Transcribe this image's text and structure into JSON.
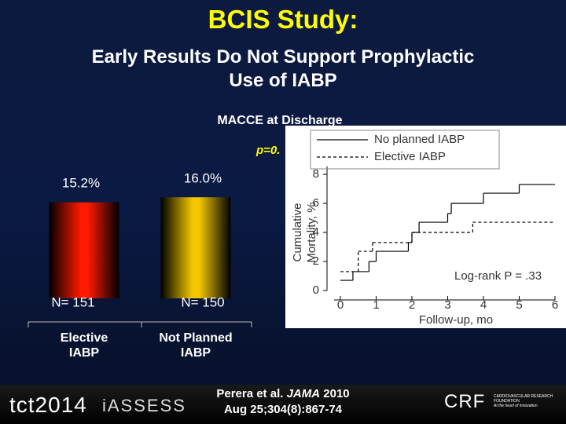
{
  "slide": {
    "title": "BCIS Study:",
    "subtitle_lines": [
      "Early Results Do Not Support Prophylactic",
      "Use of IABP"
    ]
  },
  "chart_data": [
    {
      "type": "bar",
      "title": "MACCE at Discharge",
      "annotation": "p=0.",
      "categories": [
        [
          "Elective",
          "IABP"
        ],
        [
          "Not Planned",
          "IABP"
        ]
      ],
      "values": [
        15.2,
        16.0
      ],
      "value_labels": [
        "15.2%",
        "16.0%"
      ],
      "n_labels": [
        "N= 151",
        "N= 150"
      ],
      "colors": [
        "#ff1a00",
        "#f2c600"
      ]
    },
    {
      "type": "line",
      "xlabel": "Follow-up, mo",
      "ylabel_lines": [
        "Cumulative",
        "Mortality, %"
      ],
      "xlim": [
        0,
        6
      ],
      "ylim": [
        0,
        8
      ],
      "xticks": [
        0,
        1,
        2,
        3,
        4,
        5,
        6
      ],
      "yticks": [
        0,
        2,
        4,
        6,
        8
      ],
      "annotation": "Log-rank P = .33",
      "legend": "top-right",
      "series": [
        {
          "name": "No planned IABP",
          "color": "#000000",
          "dash": false,
          "x": [
            0,
            0.35,
            0.8,
            1.0,
            1.9,
            2.0,
            2.2,
            3.0,
            3.1,
            4.0,
            5.0
          ],
          "values": [
            0.7,
            1.3,
            2.0,
            2.7,
            3.3,
            4.0,
            4.7,
            5.3,
            6.0,
            6.7,
            7.3
          ]
        },
        {
          "name": "Elective IABP",
          "color": "#000000",
          "dash": true,
          "x": [
            0,
            0.5,
            0.9,
            2.0,
            3.7
          ],
          "values": [
            1.3,
            2.7,
            3.3,
            4.0,
            4.7
          ]
        }
      ]
    }
  ],
  "footer": {
    "logo_tct": "tct2014",
    "logo_assess": "iASSESS",
    "logo_crf": "CRF",
    "crf_line1": "CARDIOVASCULAR RESEARCH FOUNDATION",
    "crf_line2": "At the heart of innovation",
    "citation": {
      "before": "Perera et al. ",
      "journal": "JAMA",
      "after": " 2010",
      "line2": "Aug 25;304(8):867-74"
    }
  }
}
